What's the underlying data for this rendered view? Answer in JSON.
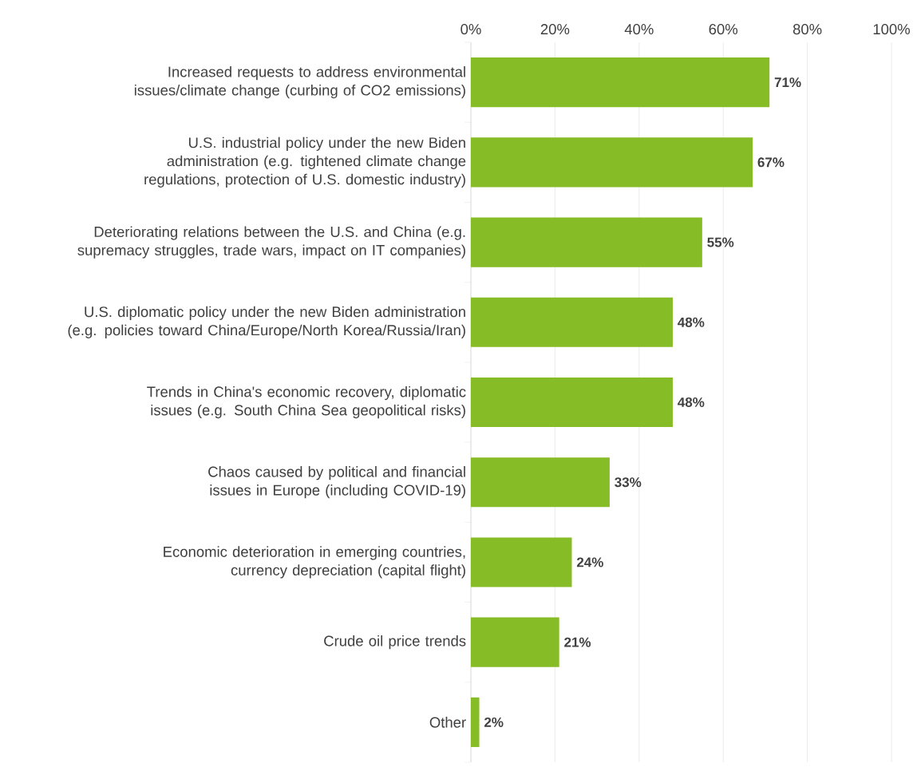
{
  "chart_data": {
    "type": "bar",
    "orientation": "horizontal",
    "categories": [
      "Increased requests to address environmental issues/climate change (curbing of CO2 emissions)",
      "U.S. industrial policy under the new Biden administration (e.g. tightened climate change regulations, protection of U.S. domestic industry)",
      "Deteriorating relations between the U.S. and China (e.g. supremacy struggles, trade wars, impact on IT companies)",
      "U.S. diplomatic policy under the new Biden administration (e.g. policies toward China/Europe/North Korea/Russia/Iran)",
      "Trends in China's economic recovery, diplomatic issues (e.g. South China Sea geopolitical risks)",
      "Chaos caused by political and financial issues in Europe (including COVID-19)",
      "Economic deterioration in emerging countries, currency depreciation (capital flight)",
      "Crude oil price trends",
      "Other"
    ],
    "values": [
      71,
      67,
      55,
      48,
      48,
      33,
      24,
      21,
      2
    ],
    "value_labels": [
      "71%",
      "67%",
      "55%",
      "48%",
      "48%",
      "33%",
      "24%",
      "21%",
      "2%"
    ],
    "color": "#86bc25",
    "xlim": [
      0,
      100
    ],
    "xticks": [
      {
        "value": 0,
        "label": "0%"
      },
      {
        "value": 20,
        "label": "20%"
      },
      {
        "value": 40,
        "label": "40%"
      },
      {
        "value": 60,
        "label": "60%"
      },
      {
        "value": 80,
        "label": "80%"
      },
      {
        "value": 100,
        "label": "100%"
      }
    ],
    "grid": "x"
  }
}
